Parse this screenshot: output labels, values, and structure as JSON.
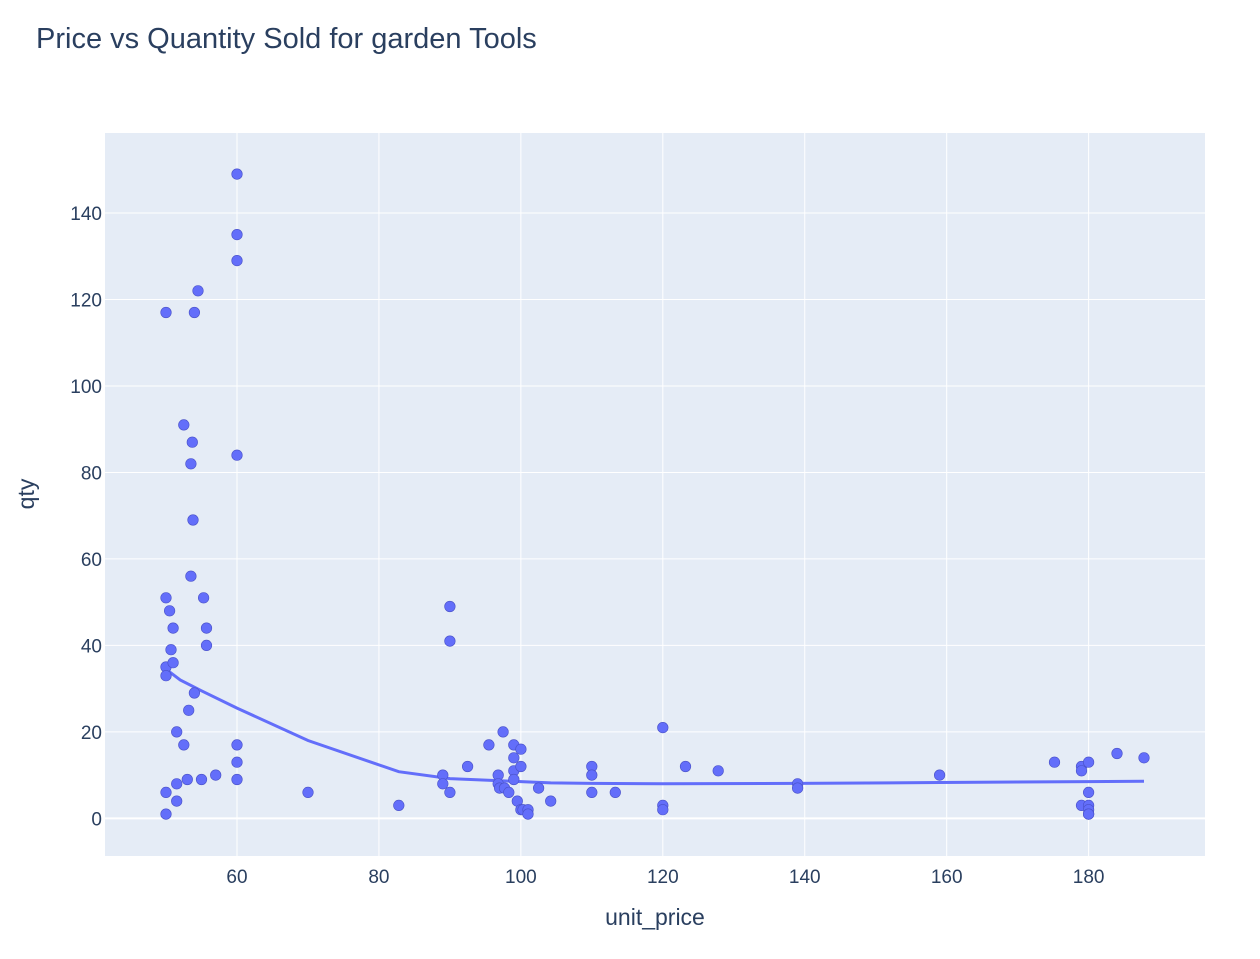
{
  "chart_data": {
    "type": "scatter",
    "title": "Price vs Quantity Sold for garden Tools",
    "xlabel": "unit_price",
    "ylabel": "qty",
    "xlim": [
      41.4,
      196.4
    ],
    "ylim": [
      -8.7,
      158.5
    ],
    "xticks": [
      60,
      80,
      100,
      120,
      140,
      160,
      180
    ],
    "yticks": [
      0,
      20,
      40,
      60,
      80,
      100,
      120,
      140
    ],
    "grid": true,
    "legend": "none",
    "colors": {
      "plot_bg": "#e5ecf6",
      "marker": "#636efa",
      "grid": "#ffffff",
      "text": "#2a3f5f"
    },
    "series": [
      {
        "mode": "markers",
        "x": [
          50,
          50,
          50,
          50,
          50,
          50,
          50.5,
          50.7,
          51,
          51,
          51.5,
          51.5,
          51.5,
          52.5,
          52.5,
          53,
          53.2,
          53.5,
          53.5,
          53.7,
          53.8,
          54,
          54,
          54.5,
          55,
          55.3,
          55.7,
          55.7,
          57,
          60,
          60,
          60,
          60,
          60,
          60,
          60,
          70,
          82.8,
          89,
          89,
          90,
          90,
          90,
          92.5,
          95.5,
          96.8,
          96.8,
          97,
          97.5,
          97.7,
          98.3,
          99,
          99,
          99,
          99,
          99.5,
          100,
          100,
          100,
          100.3,
          101,
          101,
          102.5,
          104.2,
          110,
          110,
          110,
          113.3,
          120,
          120,
          120,
          123.2,
          127.8,
          139,
          139,
          159,
          175.2,
          179,
          179,
          179,
          180,
          180,
          180,
          180,
          180,
          180,
          184,
          187.8
        ],
        "y": [
          117,
          51,
          35,
          33,
          6,
          1,
          48,
          39,
          44,
          36,
          20,
          8,
          4,
          91,
          17,
          9,
          25,
          82,
          56,
          87,
          69,
          29,
          117,
          122,
          9,
          51,
          44,
          40,
          10,
          149,
          135,
          129,
          84,
          17,
          13,
          9,
          6,
          3,
          10,
          8,
          49,
          41,
          6,
          12,
          17,
          10,
          8,
          7,
          20,
          7,
          6,
          17,
          14,
          11,
          9,
          4,
          16,
          12,
          2,
          2,
          2,
          1,
          7,
          4,
          12,
          10,
          6,
          6,
          21,
          3,
          2,
          12,
          11,
          8,
          7,
          10,
          13,
          12,
          11,
          3,
          13,
          6,
          3,
          2,
          1,
          1,
          15,
          14
        ]
      },
      {
        "mode": "lines",
        "x": [
          50,
          52,
          55,
          60,
          70,
          82.8,
          90,
          100,
          104.2,
          110,
          120,
          139,
          159,
          180,
          187.8
        ],
        "y": [
          34.5,
          32,
          29.5,
          25.5,
          18,
          10.8,
          9.2,
          8.5,
          8.2,
          8.1,
          8,
          8.1,
          8.3,
          8.5,
          8.6
        ]
      }
    ]
  }
}
